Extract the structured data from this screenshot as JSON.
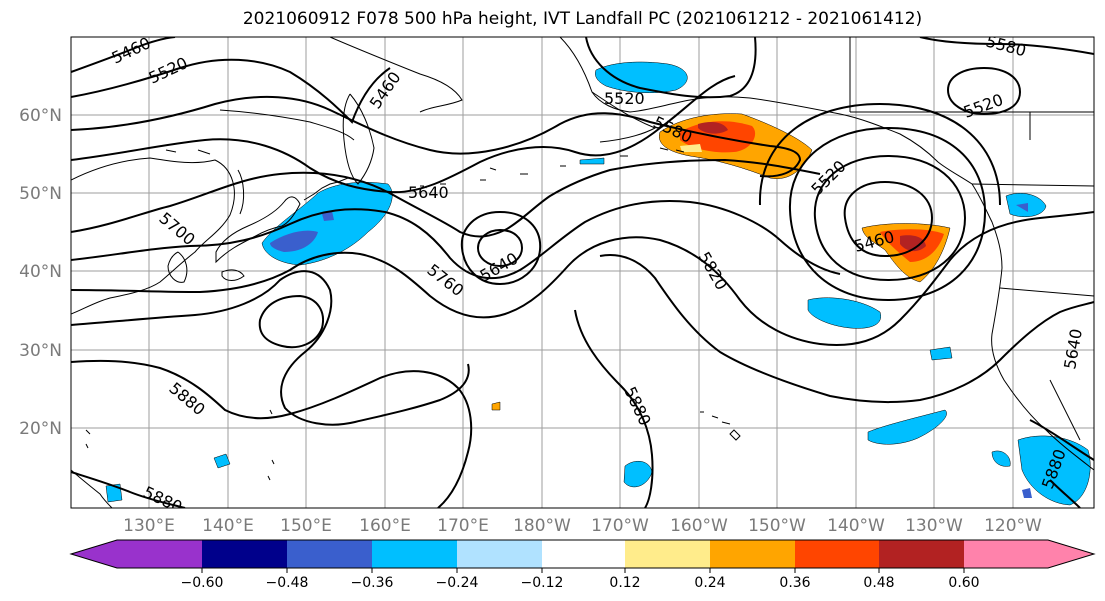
{
  "title": "2021060912 F078 500 hPa height, IVT Landfall PC (2021061212 - 2021061412)",
  "map": {
    "lat_labels": [
      "60°N",
      "50°N",
      "40°N",
      "30°N",
      "20°N"
    ],
    "lon_labels": [
      "130°E",
      "140°E",
      "150°E",
      "160°E",
      "170°E",
      "180°W",
      "170°W",
      "160°W",
      "150°W",
      "140°W",
      "130°W",
      "120°W"
    ],
    "contour_labels": [
      "5460",
      "5520",
      "5460",
      "5580",
      "5520",
      "5520",
      "5580",
      "5520",
      "5640",
      "5700",
      "5760",
      "5640",
      "5820",
      "5460",
      "5880",
      "5880",
      "5880",
      "5880",
      "5640"
    ]
  },
  "colorbar": {
    "tick_labels": [
      "-0.60",
      "−0.48",
      "−0.36",
      "−0.24",
      "−0.12",
      "0.12",
      "0.24",
      "0.36",
      "0.48",
      "0.60"
    ],
    "display_ticks": [
      "−0.60",
      "−0.48",
      "−0.36",
      "−0.24",
      "−0.12",
      "0.12",
      "0.24",
      "0.36",
      "0.48",
      "0.60"
    ],
    "colors": [
      "#9932cc",
      "#00008b",
      "#3a5fcd",
      "#00bfff",
      "#b0e2ff",
      "#ffffff",
      "#ffec8b",
      "#ffa500",
      "#ff4500",
      "#b22222",
      "#ff82ab"
    ]
  }
}
